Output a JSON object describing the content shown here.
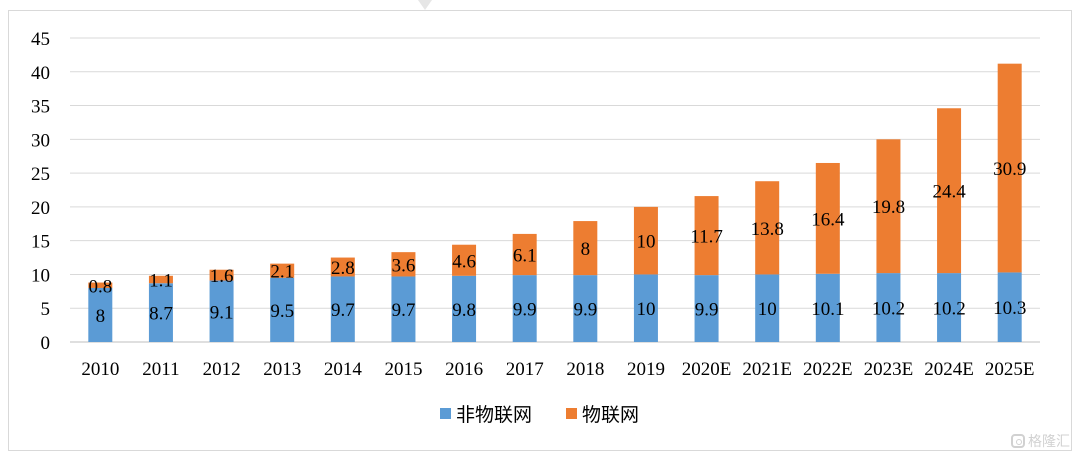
{
  "chart_data": {
    "type": "bar",
    "stacked": true,
    "categories": [
      "2010",
      "2011",
      "2012",
      "2013",
      "2014",
      "2015",
      "2016",
      "2017",
      "2018",
      "2019",
      "2020E",
      "2021E",
      "2022E",
      "2023E",
      "2024E",
      "2025E"
    ],
    "series": [
      {
        "name": "非物联网",
        "color": "#5b9bd5",
        "values": [
          8,
          8.7,
          9.1,
          9.5,
          9.7,
          9.7,
          9.8,
          9.9,
          9.9,
          10,
          9.9,
          10,
          10.1,
          10.2,
          10.2,
          10.3
        ]
      },
      {
        "name": "物联网",
        "color": "#ed7d31",
        "values": [
          0.8,
          1.1,
          1.6,
          2.1,
          2.8,
          3.6,
          4.6,
          6.1,
          8,
          10,
          11.7,
          13.8,
          16.4,
          19.8,
          24.4,
          30.9
        ]
      }
    ],
    "ylim": [
      0,
      45
    ],
    "yticks": [
      "0",
      "5",
      "10",
      "15",
      "20",
      "25",
      "30",
      "35",
      "40",
      "45"
    ],
    "grid": true,
    "legend": "bottom-center"
  },
  "watermark": {
    "text": "格隆汇",
    "icon": "gelonghui-logo-icon"
  }
}
